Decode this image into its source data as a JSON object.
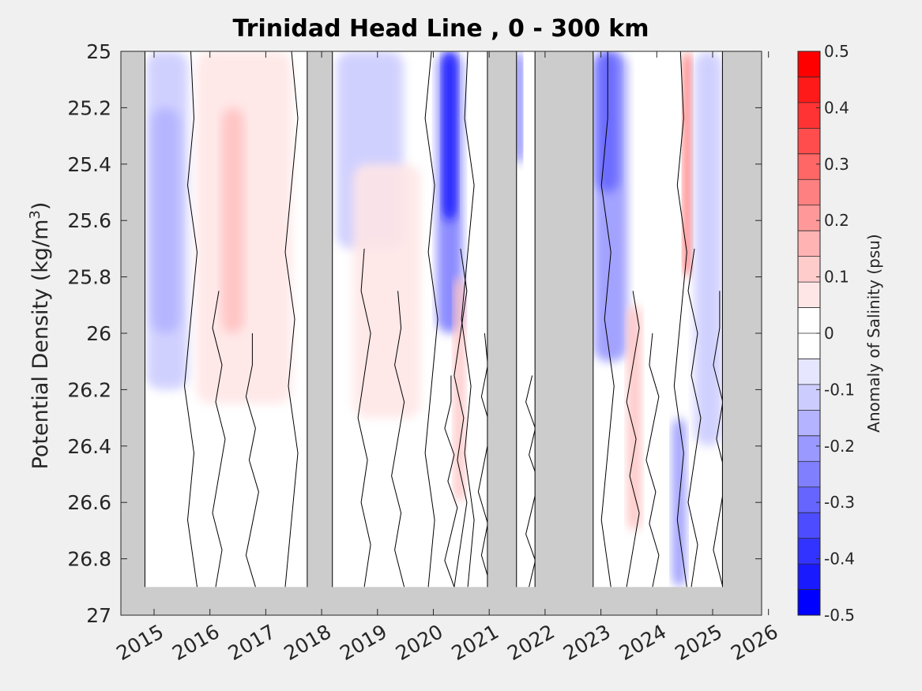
{
  "chart_data": {
    "type": "heatmap",
    "title": "Trinidad Head Line , 0 - 300 km",
    "ylabel_main": "Potential Density (kg/m",
    "ylabel_sup": "3",
    "ylabel_close": ")",
    "xlim": [
      2014.55,
      2026.0
    ],
    "ylim": [
      25.0,
      27.0
    ],
    "y_reversed": true,
    "x_ticks": [
      "2015",
      "2016",
      "2017",
      "2018",
      "2019",
      "2020",
      "2021",
      "2022",
      "2023",
      "2024",
      "2025",
      "2026"
    ],
    "y_ticks": [
      "25",
      "25.2",
      "25.4",
      "25.6",
      "25.8",
      "26",
      "26.2",
      "26.4",
      "26.6",
      "26.8",
      "27"
    ],
    "colorbar": {
      "label": "Anomaly of Salinity (psu)",
      "range": [
        -0.5,
        0.5
      ],
      "tick_labels": [
        "0.5",
        "0.4",
        "0.3",
        "0.2",
        "0.1",
        "0",
        "-0.1",
        "-0.2",
        "-0.3",
        "-0.4",
        "-0.5"
      ],
      "colors": [
        "#ff0000",
        "#ff1a1a",
        "#ff3333",
        "#ff4d4d",
        "#ff6666",
        "#ff8080",
        "#ff9999",
        "#ffb3b3",
        "#ffcccc",
        "#ffe6e6",
        "#ffffff",
        "#ffffff",
        "#e6e6ff",
        "#ccccff",
        "#b3b3ff",
        "#9999ff",
        "#8080ff",
        "#6666ff",
        "#4d4dff",
        "#3333ff",
        "#1a1aff",
        "#0000ff"
      ]
    },
    "no_data_periods": [
      [
        2014.55,
        2014.98
      ],
      [
        2017.88,
        2018.33
      ],
      [
        2021.1,
        2021.62
      ],
      [
        2021.95,
        2022.99
      ],
      [
        2025.3,
        2026.0
      ]
    ],
    "no_data_density_below": 26.9,
    "anomaly_features": [
      {
        "x0": 2015.0,
        "x1": 2015.75,
        "y0": 25.0,
        "y1": 26.2,
        "value": -0.1
      },
      {
        "x0": 2015.1,
        "x1": 2015.6,
        "y0": 25.2,
        "y1": 26.0,
        "value": -0.15
      },
      {
        "x0": 2015.9,
        "x1": 2017.6,
        "y0": 25.0,
        "y1": 26.25,
        "value": 0.05
      },
      {
        "x0": 2016.35,
        "x1": 2016.75,
        "y0": 25.2,
        "y1": 26.0,
        "value": 0.12
      },
      {
        "x0": 2018.4,
        "x1": 2019.6,
        "y0": 25.0,
        "y1": 25.7,
        "value": -0.1
      },
      {
        "x0": 2018.7,
        "x1": 2019.9,
        "y0": 25.4,
        "y1": 26.3,
        "value": 0.05
      },
      {
        "x0": 2020.2,
        "x1": 2020.65,
        "y0": 25.0,
        "y1": 26.0,
        "value": -0.25
      },
      {
        "x0": 2020.3,
        "x1": 2020.55,
        "y0": 25.0,
        "y1": 25.6,
        "value": -0.45
      },
      {
        "x0": 2020.5,
        "x1": 2020.7,
        "y0": 25.8,
        "y1": 26.6,
        "value": 0.12
      },
      {
        "x0": 2021.62,
        "x1": 2021.72,
        "y0": 25.0,
        "y1": 25.4,
        "value": -0.4
      },
      {
        "x0": 2023.0,
        "x1": 2023.6,
        "y0": 25.0,
        "y1": 26.1,
        "value": -0.2
      },
      {
        "x0": 2023.05,
        "x1": 2023.45,
        "y0": 25.0,
        "y1": 25.5,
        "value": -0.3
      },
      {
        "x0": 2023.6,
        "x1": 2023.85,
        "y0": 25.9,
        "y1": 26.7,
        "value": 0.12
      },
      {
        "x0": 2024.4,
        "x1": 2024.65,
        "y0": 26.3,
        "y1": 26.9,
        "value": -0.2
      },
      {
        "x0": 2024.6,
        "x1": 2024.75,
        "y0": 25.0,
        "y1": 25.8,
        "value": 0.3
      },
      {
        "x0": 2024.8,
        "x1": 2025.3,
        "y0": 25.0,
        "y1": 26.4,
        "value": -0.1
      }
    ],
    "grid": false,
    "legend": "colorbar-right"
  }
}
